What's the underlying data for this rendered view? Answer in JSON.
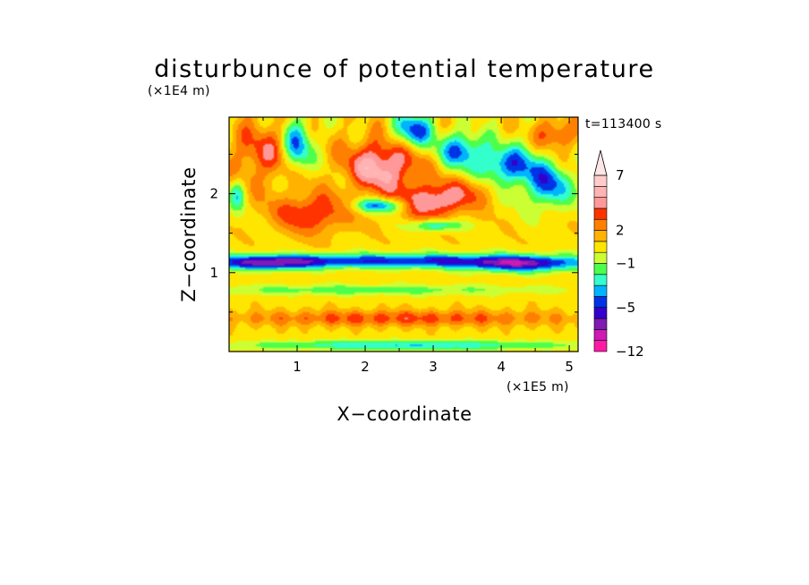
{
  "chart_data": {
    "type": "heatmap",
    "title": "disturbunce of potential temperature",
    "xlabel": "X−coordinate",
    "ylabel": "Z−coordinate",
    "x_unit": "(×1E5 m)",
    "y_unit": "(×1E4 m)",
    "time_label": "t=113400 s",
    "xlim": [
      0,
      5.13
    ],
    "ylim": [
      0,
      2.97
    ],
    "x_ticks": [
      1,
      2,
      3,
      4,
      5
    ],
    "y_ticks": [
      1,
      2
    ],
    "grid": false,
    "colorbar": {
      "levels": [
        -12,
        -11,
        -10,
        -9,
        -8,
        -7,
        -6,
        -5,
        -4,
        -3,
        -2,
        -1,
        0,
        1,
        2,
        3,
        4,
        5,
        6,
        7,
        8,
        9
      ],
      "colors": [
        "#ff1aa6",
        "#cc1ab3",
        "#7f1ab3",
        "#3300cc",
        "#0033e6",
        "#00b3ff",
        "#33ffcc",
        "#4dff4d",
        "#ccff33",
        "#ffe600",
        "#ffb300",
        "#ff8000",
        "#ff3300",
        "#ff9999",
        "#ffb3b3",
        "#ffcccc"
      ],
      "labels": [
        {
          "value": -12,
          "text": "−12"
        },
        {
          "value": -5,
          "text": "−5"
        },
        {
          "value": -1,
          "text": "−1"
        },
        {
          "value": 2,
          "text": "2"
        },
        {
          "value": 7,
          "text": "7"
        }
      ],
      "extend": "max"
    },
    "features": [
      {
        "x": 2.5,
        "z": 1.15,
        "sx": 2.6,
        "sz": 0.09,
        "value": -5.5
      },
      {
        "x": 0.55,
        "z": 1.12,
        "sx": 0.75,
        "sz": 0.09,
        "value": -5.0
      },
      {
        "x": 4.3,
        "z": 1.1,
        "sx": 0.85,
        "sz": 0.1,
        "value": -4.8
      },
      {
        "x": 2.0,
        "z": 0.78,
        "sx": 2.6,
        "sz": 0.07,
        "value": -2.2
      },
      {
        "x": 2.5,
        "z": 0.42,
        "sx": 2.6,
        "sz": 0.1,
        "value": 2.8
      },
      {
        "x": 2.6,
        "z": 0.08,
        "sx": 2.6,
        "sz": 0.06,
        "value": -3.5
      },
      {
        "x": 2.25,
        "z": 2.35,
        "sx": 0.55,
        "sz": 0.35,
        "value": 5.0
      },
      {
        "x": 3.0,
        "z": 1.9,
        "sx": 0.45,
        "sz": 0.22,
        "value": 4.6
      },
      {
        "x": 1.2,
        "z": 1.75,
        "sx": 0.55,
        "sz": 0.25,
        "value": 3.6
      },
      {
        "x": 0.5,
        "z": 2.5,
        "sx": 0.5,
        "sz": 0.4,
        "value": 3.0
      },
      {
        "x": 2.2,
        "z": 1.85,
        "sx": 0.38,
        "sz": 0.09,
        "value": -5.0
      },
      {
        "x": 3.05,
        "z": 1.6,
        "sx": 0.35,
        "sz": 0.07,
        "value": -4.2
      },
      {
        "x": 1.0,
        "z": 2.6,
        "sx": 0.22,
        "sz": 0.32,
        "value": -5.2
      },
      {
        "x": 2.7,
        "z": 2.8,
        "sx": 0.28,
        "sz": 0.22,
        "value": -5.5
      },
      {
        "x": 3.4,
        "z": 2.55,
        "sx": 0.35,
        "sz": 0.22,
        "value": -4.5
      },
      {
        "x": 4.1,
        "z": 2.35,
        "sx": 0.45,
        "sz": 0.25,
        "value": -5.0
      },
      {
        "x": 4.7,
        "z": 2.1,
        "sx": 0.35,
        "sz": 0.28,
        "value": -4.5
      },
      {
        "x": 4.8,
        "z": 2.75,
        "sx": 0.3,
        "sz": 0.2,
        "value": 3.0
      },
      {
        "x": 3.6,
        "z": 2.05,
        "sx": 0.35,
        "sz": 0.2,
        "value": 2.0
      },
      {
        "x": 0.12,
        "z": 2.0,
        "sx": 0.12,
        "sz": 0.2,
        "value": -3.5
      }
    ]
  }
}
